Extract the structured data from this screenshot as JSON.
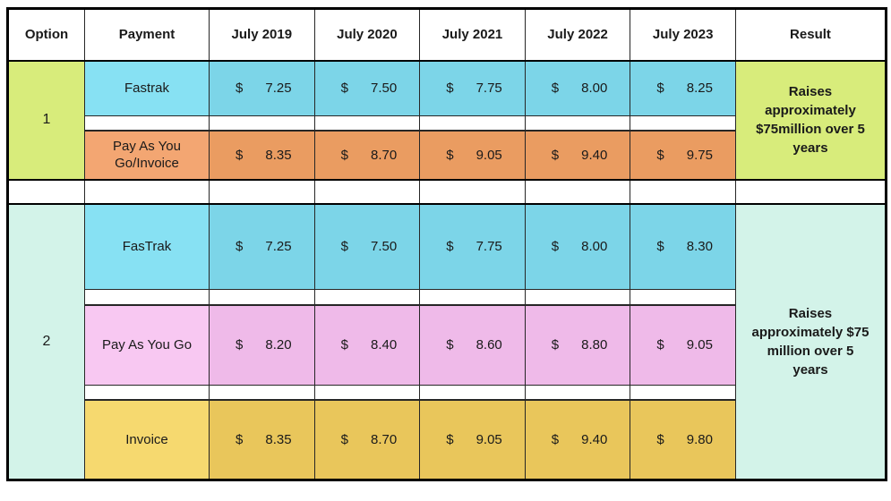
{
  "header": {
    "columns": [
      "Option",
      "Payment",
      "July 2019",
      "July 2020",
      "July 2021",
      "July 2022",
      "July 2023",
      "Result"
    ]
  },
  "currency": "$",
  "options": [
    {
      "number": "1",
      "result": "Raises approximately $75million over 5 years",
      "rows": [
        {
          "payment": "Fastrak",
          "values": [
            "7.25",
            "7.50",
            "7.75",
            "8.00",
            "8.25"
          ]
        },
        {
          "payment": "Pay As You Go/Invoice",
          "values": [
            "8.35",
            "8.70",
            "9.05",
            "9.40",
            "9.75"
          ]
        }
      ]
    },
    {
      "number": "2",
      "result": "Raises approximately $75 million over 5 years",
      "rows": [
        {
          "payment": "FasTrak",
          "values": [
            "7.25",
            "7.50",
            "7.75",
            "8.00",
            "8.30"
          ]
        },
        {
          "payment": "Pay As You Go",
          "values": [
            "8.20",
            "8.40",
            "8.60",
            "8.80",
            "9.05"
          ]
        },
        {
          "payment": "Invoice",
          "values": [
            "8.35",
            "8.70",
            "9.05",
            "9.40",
            "9.80"
          ]
        }
      ]
    }
  ],
  "colors": {
    "option1_green": "#d8ec7b",
    "option2_mint": "#d3f3e9",
    "fastrak_label_cyan": "#87e1f3",
    "fastrak_value_cyan": "#7cd5e8",
    "payg_invoice_label_orange": "#f3a672",
    "payg_invoice_value_orange": "#ea9c61",
    "payg_label_pink": "#f8c8f2",
    "payg_value_pink": "#efbae9",
    "invoice_label_yellow": "#f6d96f",
    "invoice_value_yellow": "#e9c65b",
    "grid_line": "#262626",
    "outer_border": "#000000"
  }
}
